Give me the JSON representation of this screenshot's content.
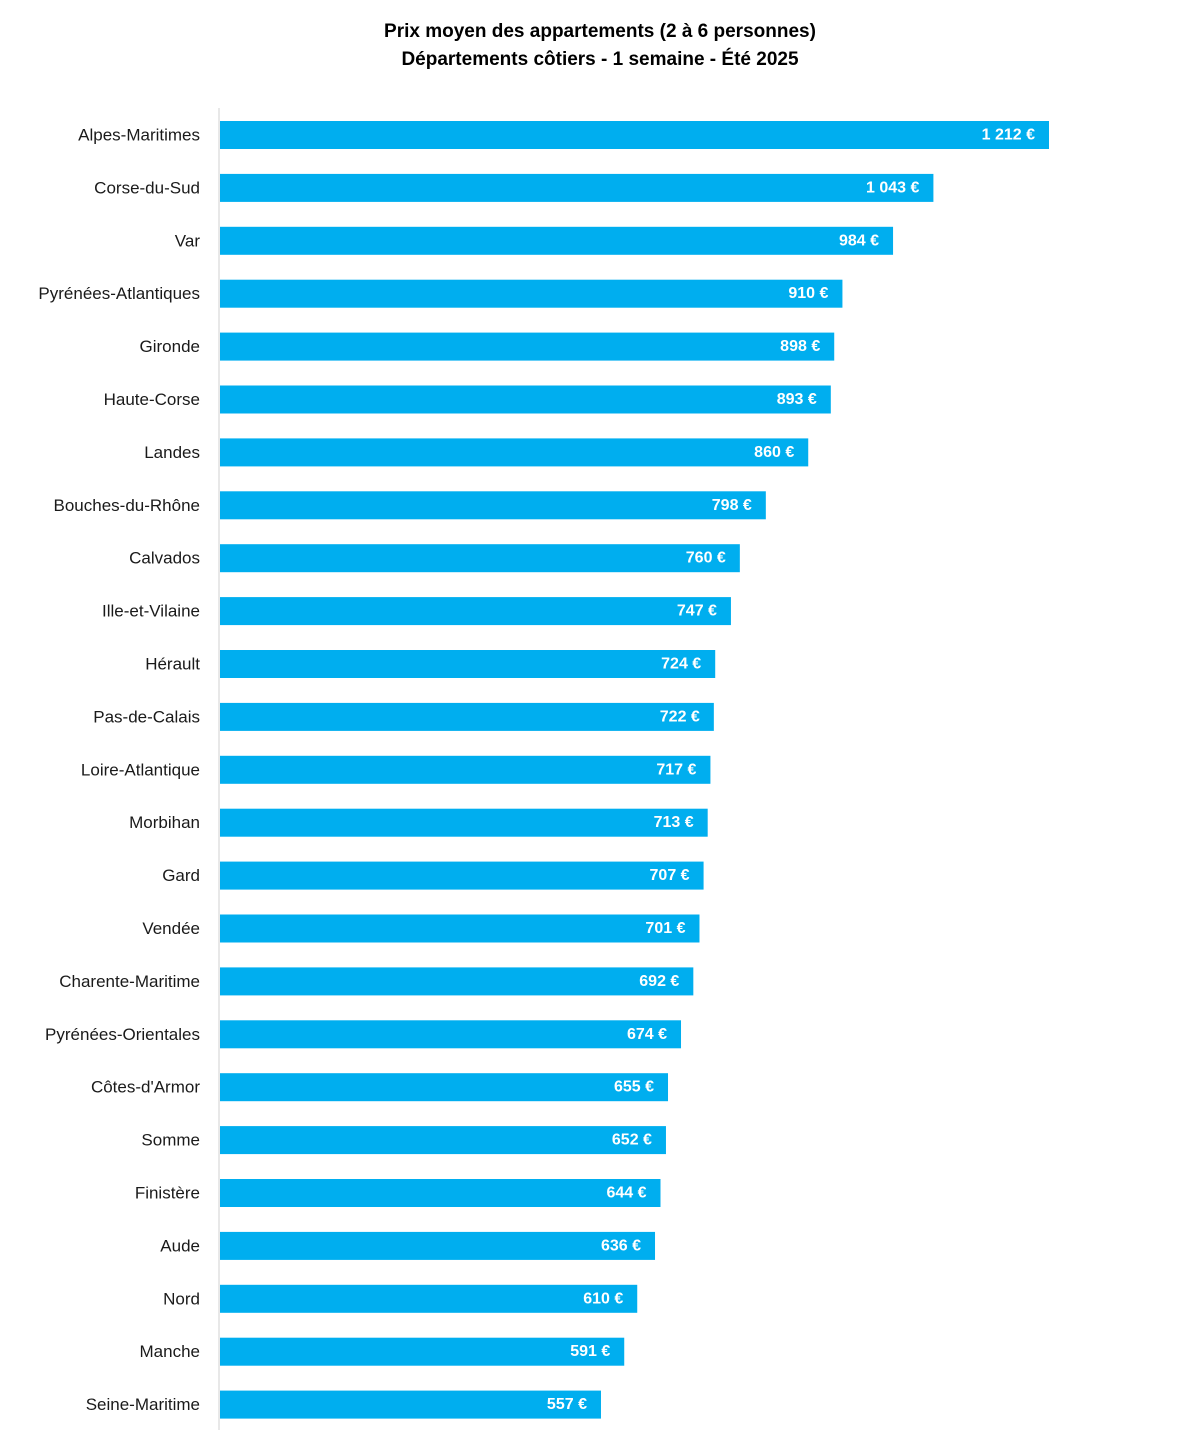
{
  "chart_data": {
    "type": "bar",
    "orientation": "horizontal",
    "title": "Prix moyen des appartements (2 à 6 personnes)",
    "subtitle": "Départements côtiers - 1 semaine - Été 2025",
    "xlabel": "",
    "ylabel": "",
    "xlim": [
      0,
      1212
    ],
    "grid": false,
    "legend": "none",
    "bar_color": "#00AEEF",
    "categories": [
      "Alpes-Maritimes",
      "Corse-du-Sud",
      "Var",
      "Pyrénées-Atlantiques",
      "Gironde",
      "Haute-Corse",
      "Landes",
      "Bouches-du-Rhône",
      "Calvados",
      "Ille-et-Vilaine",
      "Hérault",
      "Pas-de-Calais",
      "Loire-Atlantique",
      "Morbihan",
      "Gard",
      "Vendée",
      "Charente-Maritime",
      "Pyrénées-Orientales",
      "Côtes-d'Armor",
      "Somme",
      "Finistère",
      "Aude",
      "Nord",
      "Manche",
      "Seine-Maritime"
    ],
    "values": [
      1212,
      1043,
      984,
      910,
      898,
      893,
      860,
      798,
      760,
      747,
      724,
      722,
      717,
      713,
      707,
      701,
      692,
      674,
      655,
      652,
      644,
      636,
      610,
      591,
      557
    ],
    "data_labels": [
      "1 212 €",
      "1 043 €",
      "984 €",
      "910 €",
      "898 €",
      "893 €",
      "860 €",
      "798 €",
      "760 €",
      "747 €",
      "724 €",
      "722 €",
      "717 €",
      "713 €",
      "707 €",
      "701 €",
      "692 €",
      "674 €",
      "655 €",
      "652 €",
      "644 €",
      "636 €",
      "610 €",
      "591 €",
      "557 €"
    ]
  }
}
